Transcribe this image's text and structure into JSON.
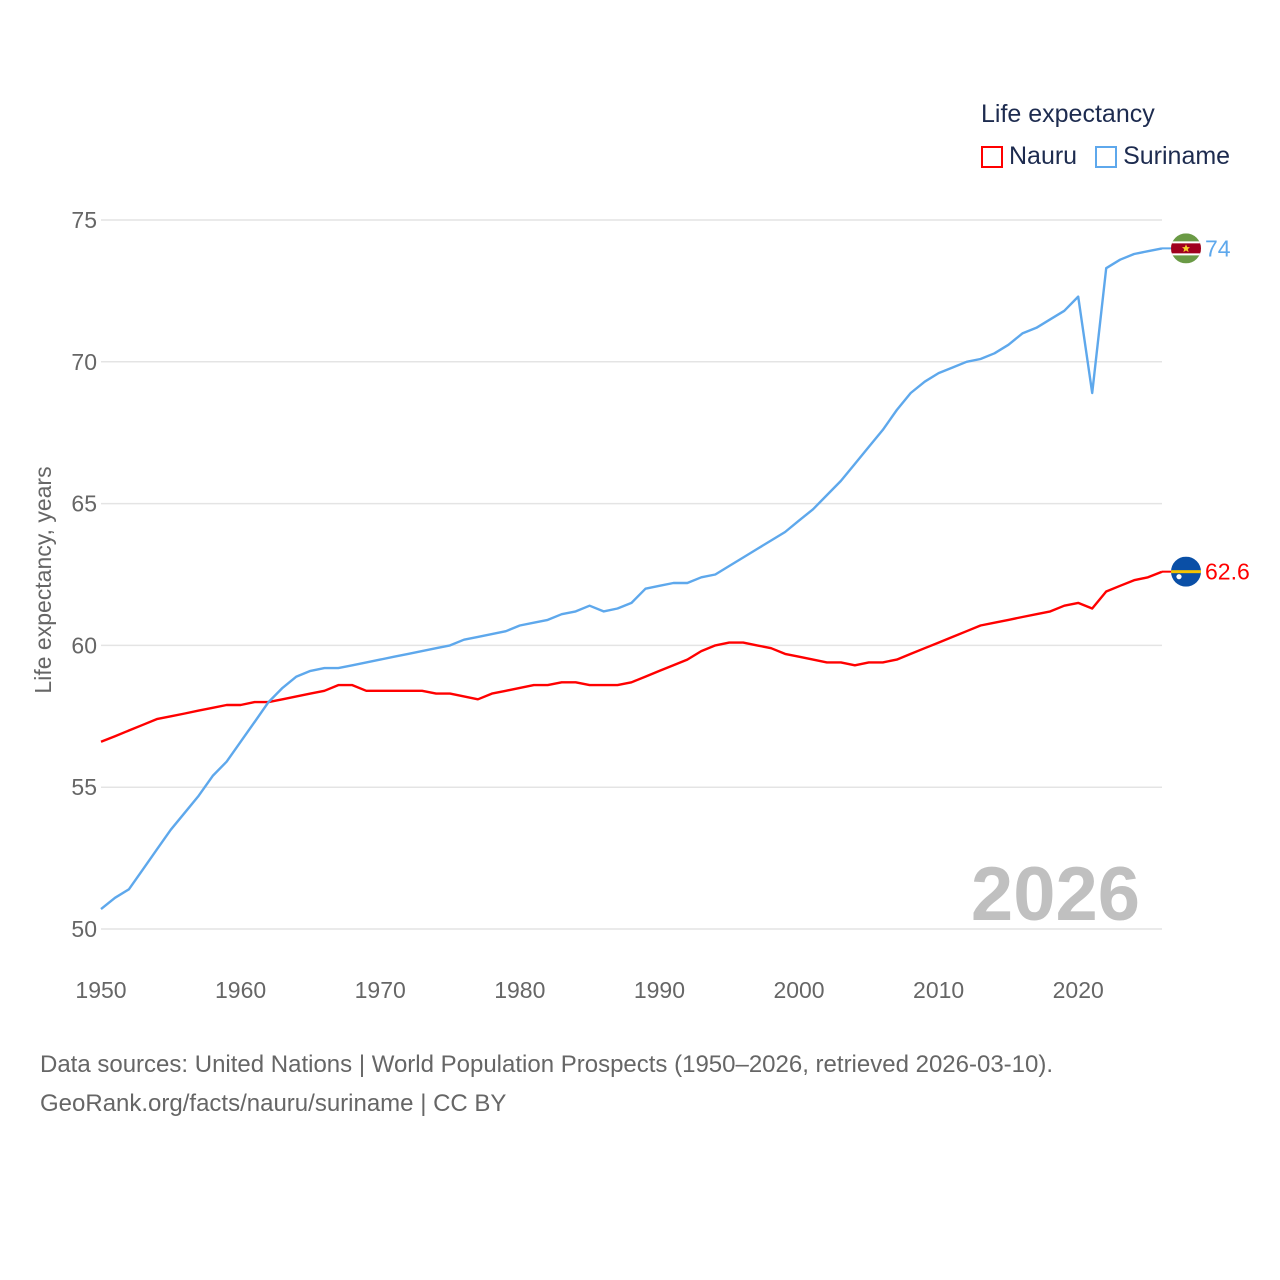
{
  "legend": {
    "title": "Life expectancy",
    "items": [
      {
        "label": "Nauru",
        "color": "#ff0000"
      },
      {
        "label": "Suriname",
        "color": "#5ea8ec"
      }
    ]
  },
  "footer": {
    "line1": "Data sources: United Nations | World Population Prospects (1950–2026, retrieved 2026-03-10).",
    "line2": "GeoRank.org/facts/nauru/suriname | CC BY"
  },
  "chart_data": {
    "type": "line",
    "title": "Life expectancy",
    "xlabel": "",
    "ylabel": "Life expectancy, years",
    "xlim": [
      1950,
      2026
    ],
    "ylim": [
      50,
      75
    ],
    "xticks": [
      1950,
      1960,
      1970,
      1980,
      1990,
      2000,
      2010,
      2020
    ],
    "yticks": [
      50,
      55,
      60,
      65,
      70,
      75
    ],
    "grid": true,
    "legend_position": "top-right",
    "watermark_year": "2026",
    "x_start": 1950,
    "series": [
      {
        "name": "Nauru",
        "color": "#ff0000",
        "end_label": "62.6",
        "flag": "nauru-flag",
        "values": [
          56.6,
          56.8,
          57.0,
          57.2,
          57.4,
          57.5,
          57.6,
          57.7,
          57.8,
          57.9,
          57.9,
          58.0,
          58.0,
          58.1,
          58.2,
          58.3,
          58.4,
          58.6,
          58.6,
          58.4,
          58.4,
          58.4,
          58.4,
          58.4,
          58.3,
          58.3,
          58.2,
          58.1,
          58.3,
          58.4,
          58.5,
          58.6,
          58.6,
          58.7,
          58.7,
          58.6,
          58.6,
          58.6,
          58.7,
          58.9,
          59.1,
          59.3,
          59.5,
          59.8,
          60.0,
          60.1,
          60.1,
          60.0,
          59.9,
          59.7,
          59.6,
          59.5,
          59.4,
          59.4,
          59.3,
          59.4,
          59.4,
          59.5,
          59.7,
          59.9,
          60.1,
          60.3,
          60.5,
          60.7,
          60.8,
          60.9,
          61.0,
          61.1,
          61.2,
          61.4,
          61.5,
          61.3,
          61.9,
          62.1,
          62.3,
          62.4,
          62.6
        ]
      },
      {
        "name": "Suriname",
        "color": "#5ea8ec",
        "end_label": "74",
        "flag": "suriname-flag",
        "values": [
          50.7,
          51.1,
          51.4,
          52.1,
          52.8,
          53.5,
          54.1,
          54.7,
          55.4,
          55.9,
          56.6,
          57.3,
          58.0,
          58.5,
          58.9,
          59.1,
          59.2,
          59.2,
          59.3,
          59.4,
          59.5,
          59.6,
          59.7,
          59.8,
          59.9,
          60.0,
          60.2,
          60.3,
          60.4,
          60.5,
          60.7,
          60.8,
          60.9,
          61.1,
          61.2,
          61.4,
          61.2,
          61.3,
          61.5,
          62.0,
          62.1,
          62.2,
          62.2,
          62.4,
          62.5,
          62.8,
          63.1,
          63.4,
          63.7,
          64.0,
          64.4,
          64.8,
          65.3,
          65.8,
          66.4,
          67.0,
          67.6,
          68.3,
          68.9,
          69.3,
          69.6,
          69.8,
          70.0,
          70.1,
          70.3,
          70.6,
          71.0,
          71.2,
          71.5,
          71.8,
          72.3,
          68.9,
          73.3,
          73.6,
          73.8,
          73.9,
          74.0
        ]
      }
    ]
  }
}
